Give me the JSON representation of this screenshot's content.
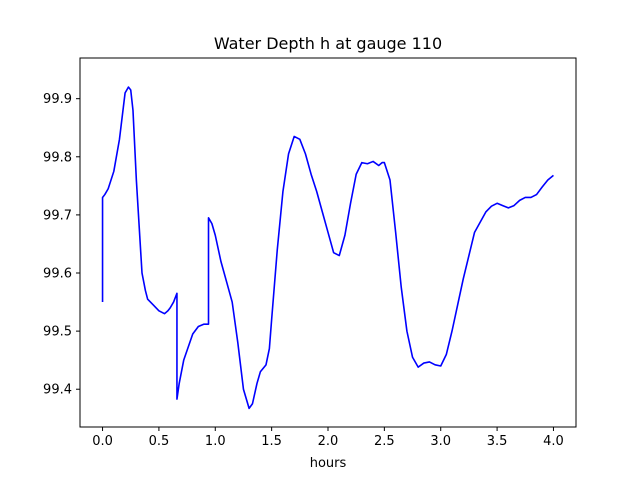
{
  "chart_data": {
    "type": "line",
    "title": "Water Depth h at gauge 110",
    "xlabel": "hours",
    "ylabel": "",
    "xlim": [
      -0.2,
      4.2
    ],
    "ylim": [
      99.335,
      99.97
    ],
    "grid": false,
    "xticks": [
      0.0,
      0.5,
      1.0,
      1.5,
      2.0,
      2.5,
      3.0,
      3.5,
      4.0
    ],
    "xtick_labels": [
      "0.0",
      "0.5",
      "1.0",
      "1.5",
      "2.0",
      "2.5",
      "3.0",
      "3.5",
      "4.0"
    ],
    "yticks": [
      99.4,
      99.5,
      99.6,
      99.7,
      99.8,
      99.9
    ],
    "ytick_labels": [
      "99.4",
      "99.5",
      "99.6",
      "99.7",
      "99.8",
      "99.9"
    ],
    "series": [
      {
        "color": "#0000ff",
        "x": [
          0.0,
          0.0,
          0.02,
          0.05,
          0.1,
          0.15,
          0.2,
          0.23,
          0.25,
          0.27,
          0.3,
          0.35,
          0.38,
          0.4,
          0.45,
          0.5,
          0.55,
          0.58,
          0.6,
          0.63,
          0.66,
          0.66,
          0.68,
          0.72,
          0.8,
          0.85,
          0.9,
          0.94,
          0.94,
          0.97,
          1.0,
          1.05,
          1.1,
          1.15,
          1.2,
          1.25,
          1.3,
          1.33,
          1.37,
          1.4,
          1.45,
          1.48,
          1.5,
          1.55,
          1.6,
          1.65,
          1.7,
          1.75,
          1.8,
          1.85,
          1.9,
          1.95,
          2.0,
          2.05,
          2.1,
          2.15,
          2.2,
          2.25,
          2.3,
          2.35,
          2.4,
          2.45,
          2.48,
          2.5,
          2.55,
          2.6,
          2.65,
          2.7,
          2.75,
          2.8,
          2.85,
          2.9,
          2.95,
          3.0,
          3.05,
          3.1,
          3.15,
          3.2,
          3.3,
          3.4,
          3.45,
          3.5,
          3.55,
          3.6,
          3.65,
          3.7,
          3.75,
          3.8,
          3.85,
          3.9,
          3.95,
          4.0
        ],
        "y": [
          99.55,
          99.73,
          99.735,
          99.745,
          99.775,
          99.83,
          99.91,
          99.92,
          99.915,
          99.88,
          99.76,
          99.6,
          99.57,
          99.555,
          99.545,
          99.535,
          99.53,
          99.535,
          99.54,
          99.55,
          99.565,
          99.383,
          99.41,
          99.45,
          99.495,
          99.508,
          99.512,
          99.512,
          99.695,
          99.685,
          99.665,
          99.62,
          99.585,
          99.55,
          99.48,
          99.4,
          99.367,
          99.375,
          99.41,
          99.43,
          99.442,
          99.47,
          99.52,
          99.64,
          99.74,
          99.805,
          99.835,
          99.83,
          99.805,
          99.77,
          99.74,
          99.705,
          99.67,
          99.635,
          99.63,
          99.665,
          99.72,
          99.77,
          99.79,
          99.788,
          99.792,
          99.785,
          99.79,
          99.79,
          99.76,
          99.67,
          99.575,
          99.5,
          99.455,
          99.438,
          99.445,
          99.447,
          99.442,
          99.44,
          99.46,
          99.5,
          99.545,
          99.59,
          99.67,
          99.705,
          99.715,
          99.72,
          99.716,
          99.712,
          99.716,
          99.725,
          99.73,
          99.73,
          99.735,
          99.748,
          99.76,
          99.768
        ]
      }
    ]
  }
}
